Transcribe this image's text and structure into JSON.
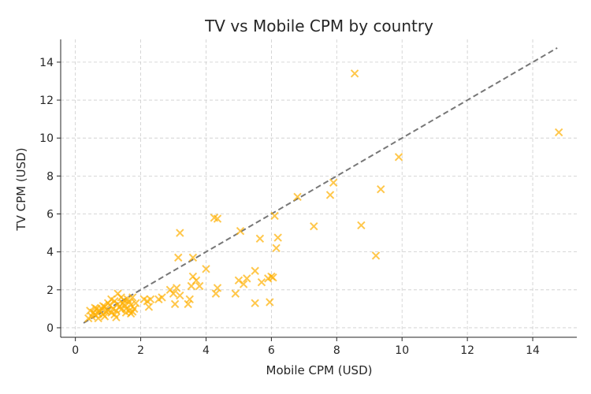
{
  "chart_data": {
    "type": "scatter",
    "title": "TV vs Mobile CPM by country",
    "xlabel": "Mobile CPM (USD)",
    "ylabel": "TV CPM (USD)",
    "xlim": [
      -0.45,
      15.35
    ],
    "ylim": [
      -0.5,
      15.2
    ],
    "xticks": [
      0,
      2,
      4,
      6,
      8,
      10,
      12,
      14
    ],
    "yticks": [
      0,
      2,
      4,
      6,
      8,
      10,
      12,
      14
    ],
    "grid": true,
    "marker": "x",
    "colors": {
      "points": "#ffb000",
      "trend": "#777777"
    },
    "trendline": {
      "x": [
        0.25,
        14.75
      ],
      "y": [
        0.25,
        14.75
      ],
      "style": "dashed"
    },
    "points": [
      [
        0.4,
        0.5
      ],
      [
        0.45,
        0.9
      ],
      [
        0.5,
        0.6
      ],
      [
        0.55,
        0.8
      ],
      [
        0.6,
        0.7
      ],
      [
        0.65,
        1.0
      ],
      [
        0.7,
        0.75
      ],
      [
        0.75,
        0.9
      ],
      [
        0.8,
        1.0
      ],
      [
        0.85,
        0.7
      ],
      [
        0.9,
        1.1
      ],
      [
        0.95,
        0.85
      ],
      [
        1.0,
        0.9
      ],
      [
        1.05,
        1.2
      ],
      [
        1.1,
        0.8
      ],
      [
        1.15,
        1.0
      ],
      [
        1.2,
        1.4
      ],
      [
        1.25,
        0.9
      ],
      [
        1.3,
        1.8
      ],
      [
        1.35,
        1.1
      ],
      [
        1.4,
        0.95
      ],
      [
        1.45,
        1.3
      ],
      [
        1.5,
        1.2
      ],
      [
        1.55,
        1.0
      ],
      [
        1.6,
        1.5
      ],
      [
        1.65,
        0.9
      ],
      [
        1.7,
        1.2
      ],
      [
        1.75,
        1.6
      ],
      [
        1.8,
        1.0
      ],
      [
        0.7,
        0.5
      ],
      [
        0.9,
        0.6
      ],
      [
        1.1,
        1.5
      ],
      [
        1.2,
        0.7
      ],
      [
        1.4,
        1.6
      ],
      [
        1.55,
        0.8
      ],
      [
        1.65,
        1.35
      ],
      [
        1.75,
        0.85
      ],
      [
        1.0,
        1.3
      ],
      [
        0.6,
        1.05
      ],
      [
        1.3,
        1.25
      ],
      [
        0.85,
        1.15
      ],
      [
        1.5,
        1.45
      ],
      [
        1.7,
        0.75
      ],
      [
        1.85,
        1.3
      ],
      [
        1.25,
        0.55
      ],
      [
        2.1,
        1.5
      ],
      [
        2.2,
        1.4
      ],
      [
        2.25,
        1.1
      ],
      [
        2.3,
        1.5
      ],
      [
        2.55,
        1.5
      ],
      [
        2.65,
        1.6
      ],
      [
        2.9,
        2.0
      ],
      [
        3.0,
        1.8
      ],
      [
        3.05,
        1.25
      ],
      [
        3.1,
        2.1
      ],
      [
        3.2,
        1.7
      ],
      [
        3.15,
        3.7
      ],
      [
        3.2,
        5.0
      ],
      [
        3.45,
        1.25
      ],
      [
        3.5,
        1.5
      ],
      [
        3.55,
        2.2
      ],
      [
        3.6,
        3.7
      ],
      [
        3.6,
        2.7
      ],
      [
        3.7,
        2.5
      ],
      [
        3.8,
        2.2
      ],
      [
        4.0,
        3.1
      ],
      [
        4.3,
        1.8
      ],
      [
        4.35,
        2.1
      ],
      [
        4.25,
        5.8
      ],
      [
        4.35,
        5.75
      ],
      [
        4.9,
        1.8
      ],
      [
        5.0,
        2.5
      ],
      [
        5.05,
        5.1
      ],
      [
        5.15,
        2.3
      ],
      [
        5.25,
        2.6
      ],
      [
        5.5,
        3.0
      ],
      [
        5.5,
        1.3
      ],
      [
        5.65,
        4.7
      ],
      [
        5.7,
        2.4
      ],
      [
        5.9,
        2.6
      ],
      [
        5.95,
        1.35
      ],
      [
        6.0,
        2.7
      ],
      [
        6.05,
        2.65
      ],
      [
        6.1,
        5.9
      ],
      [
        6.15,
        4.2
      ],
      [
        6.2,
        4.75
      ],
      [
        6.8,
        6.9
      ],
      [
        7.3,
        5.35
      ],
      [
        7.8,
        7.0
      ],
      [
        7.9,
        7.65
      ],
      [
        8.55,
        13.4
      ],
      [
        8.75,
        5.4
      ],
      [
        9.2,
        3.8
      ],
      [
        9.35,
        7.3
      ],
      [
        9.9,
        9.0
      ],
      [
        14.8,
        10.3
      ]
    ]
  }
}
